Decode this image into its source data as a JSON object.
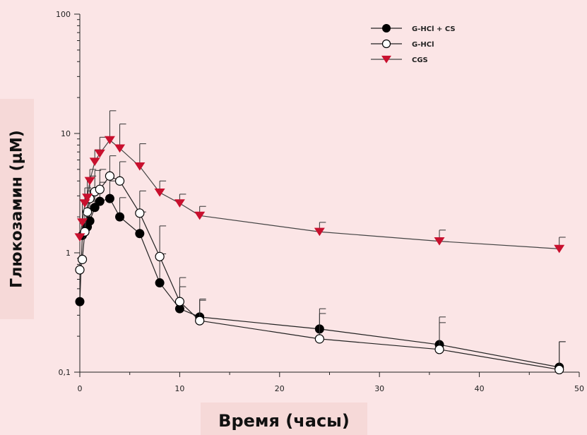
{
  "chart_data": {
    "type": "line",
    "title": "",
    "xlabel": "Время (часы)",
    "ylabel": "Глюкозамин (μM)",
    "xlim": [
      0,
      50
    ],
    "ylim": [
      0.1,
      100
    ],
    "yscale": "log",
    "x_ticks": [
      0,
      10,
      20,
      30,
      40,
      50
    ],
    "x_tick_labels": [
      "0",
      "10",
      "20",
      "30",
      "40",
      "50"
    ],
    "y_ticks": [
      0.1,
      1,
      10,
      100
    ],
    "y_tick_labels": [
      "0,1",
      "1",
      "10",
      "100"
    ],
    "grid": false,
    "legend_position": "top-right",
    "series": [
      {
        "name": "G-HCl + CS",
        "color": "#000000",
        "marker": "filled-circle",
        "x": [
          0,
          0.25,
          0.5,
          0.75,
          1,
          1.5,
          2,
          3,
          4,
          6,
          8,
          10,
          12,
          24,
          36,
          48
        ],
        "y": [
          0.39,
          1.4,
          1.5,
          1.65,
          1.85,
          2.4,
          2.7,
          2.85,
          2.0,
          1.45,
          0.56,
          0.34,
          0.29,
          0.23,
          0.17,
          0.11
        ],
        "y_upper": [
          null,
          1.9,
          2.1,
          2.3,
          2.7,
          3.4,
          3.9,
          4.0,
          2.9,
          2.2,
          0.98,
          0.52,
          0.41,
          0.34,
          0.29,
          0.18
        ]
      },
      {
        "name": "G-HCl",
        "color": "#000000",
        "marker": "open-circle",
        "x": [
          0,
          0.25,
          0.5,
          0.75,
          1,
          1.5,
          2,
          3,
          4,
          6,
          8,
          10,
          12,
          24,
          36,
          48
        ],
        "y": [
          0.72,
          0.88,
          1.5,
          2.2,
          2.85,
          3.25,
          3.4,
          4.4,
          4.0,
          2.15,
          0.93,
          0.39,
          0.27,
          0.19,
          0.155,
          0.105
        ],
        "y_upper": [
          null,
          null,
          2.3,
          3.3,
          4.4,
          4.9,
          5.0,
          6.5,
          5.8,
          3.3,
          1.68,
          0.62,
          0.4,
          0.31,
          0.26,
          0.18
        ]
      },
      {
        "name": "CGS",
        "color": "#c8102e",
        "marker": "down-triangle",
        "x": [
          0,
          0.25,
          0.5,
          0.75,
          1,
          1.5,
          2,
          3,
          4,
          6,
          8,
          10,
          12,
          24,
          36,
          48
        ],
        "y": [
          1.35,
          1.8,
          2.6,
          2.9,
          4.0,
          5.8,
          6.8,
          8.8,
          7.5,
          5.3,
          3.2,
          2.6,
          2.05,
          1.5,
          1.25,
          1.08
        ],
        "y_upper": [
          null,
          2.6,
          3.5,
          4.2,
          5.0,
          7.3,
          9.3,
          15.5,
          12.0,
          8.2,
          4.0,
          3.1,
          2.45,
          1.8,
          1.55,
          1.35
        ]
      }
    ]
  }
}
